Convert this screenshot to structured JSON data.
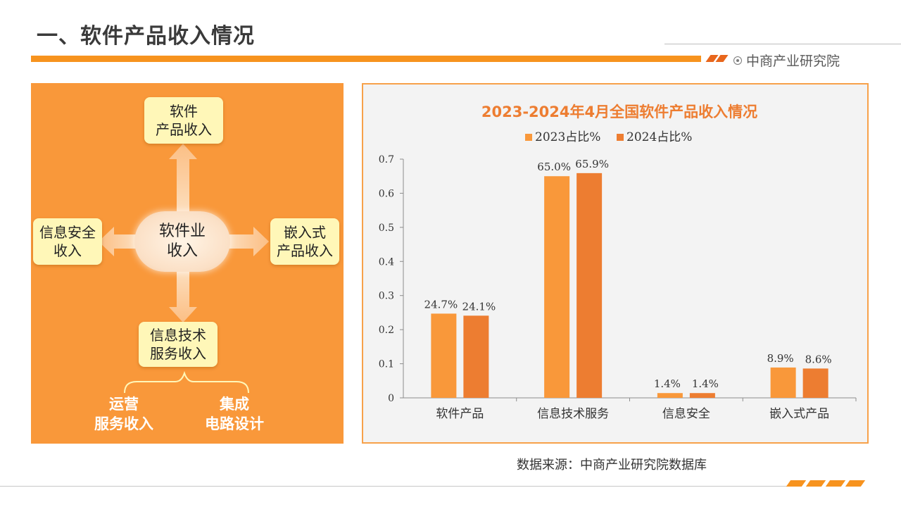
{
  "header": {
    "title": "一、软件产品收入情况",
    "brand": "中商产业研究院"
  },
  "diagram": {
    "center": [
      "软件业",
      "收入"
    ],
    "top": [
      "软件",
      "产品收入"
    ],
    "left": [
      "信息安全",
      "收入"
    ],
    "right": [
      "嵌入式",
      "产品收入"
    ],
    "bottom": [
      "信息技术",
      "服务收入"
    ],
    "sub_left": [
      "运营",
      "服务收入"
    ],
    "sub_right": [
      "集成",
      "电路设计"
    ]
  },
  "chart_data": {
    "type": "bar",
    "title": "2023-2024年4月全国软件产品收入情况",
    "categories": [
      "软件产品",
      "信息技术服务",
      "信息安全",
      "嵌入式产品"
    ],
    "series": [
      {
        "name": "2023占比%",
        "values": [
          0.247,
          0.65,
          0.014,
          0.089
        ],
        "labels": [
          "24.7%",
          "65.0%",
          "1.4%",
          "8.9%"
        ],
        "color": "#f9983a"
      },
      {
        "name": "2024占比%",
        "values": [
          0.241,
          0.659,
          0.014,
          0.086
        ],
        "labels": [
          "24.1%",
          "65.9%",
          "1.4%",
          "8.6%"
        ],
        "color": "#ed7d31"
      }
    ],
    "yticks": [
      "0",
      "0.1",
      "0.2",
      "0.3",
      "0.4",
      "0.5",
      "0.6",
      "0.7"
    ],
    "ylim": [
      0,
      0.7
    ],
    "legend_position": "top",
    "grid": false
  },
  "footer": {
    "source": "数据来源：中商产业研究院数据库"
  }
}
